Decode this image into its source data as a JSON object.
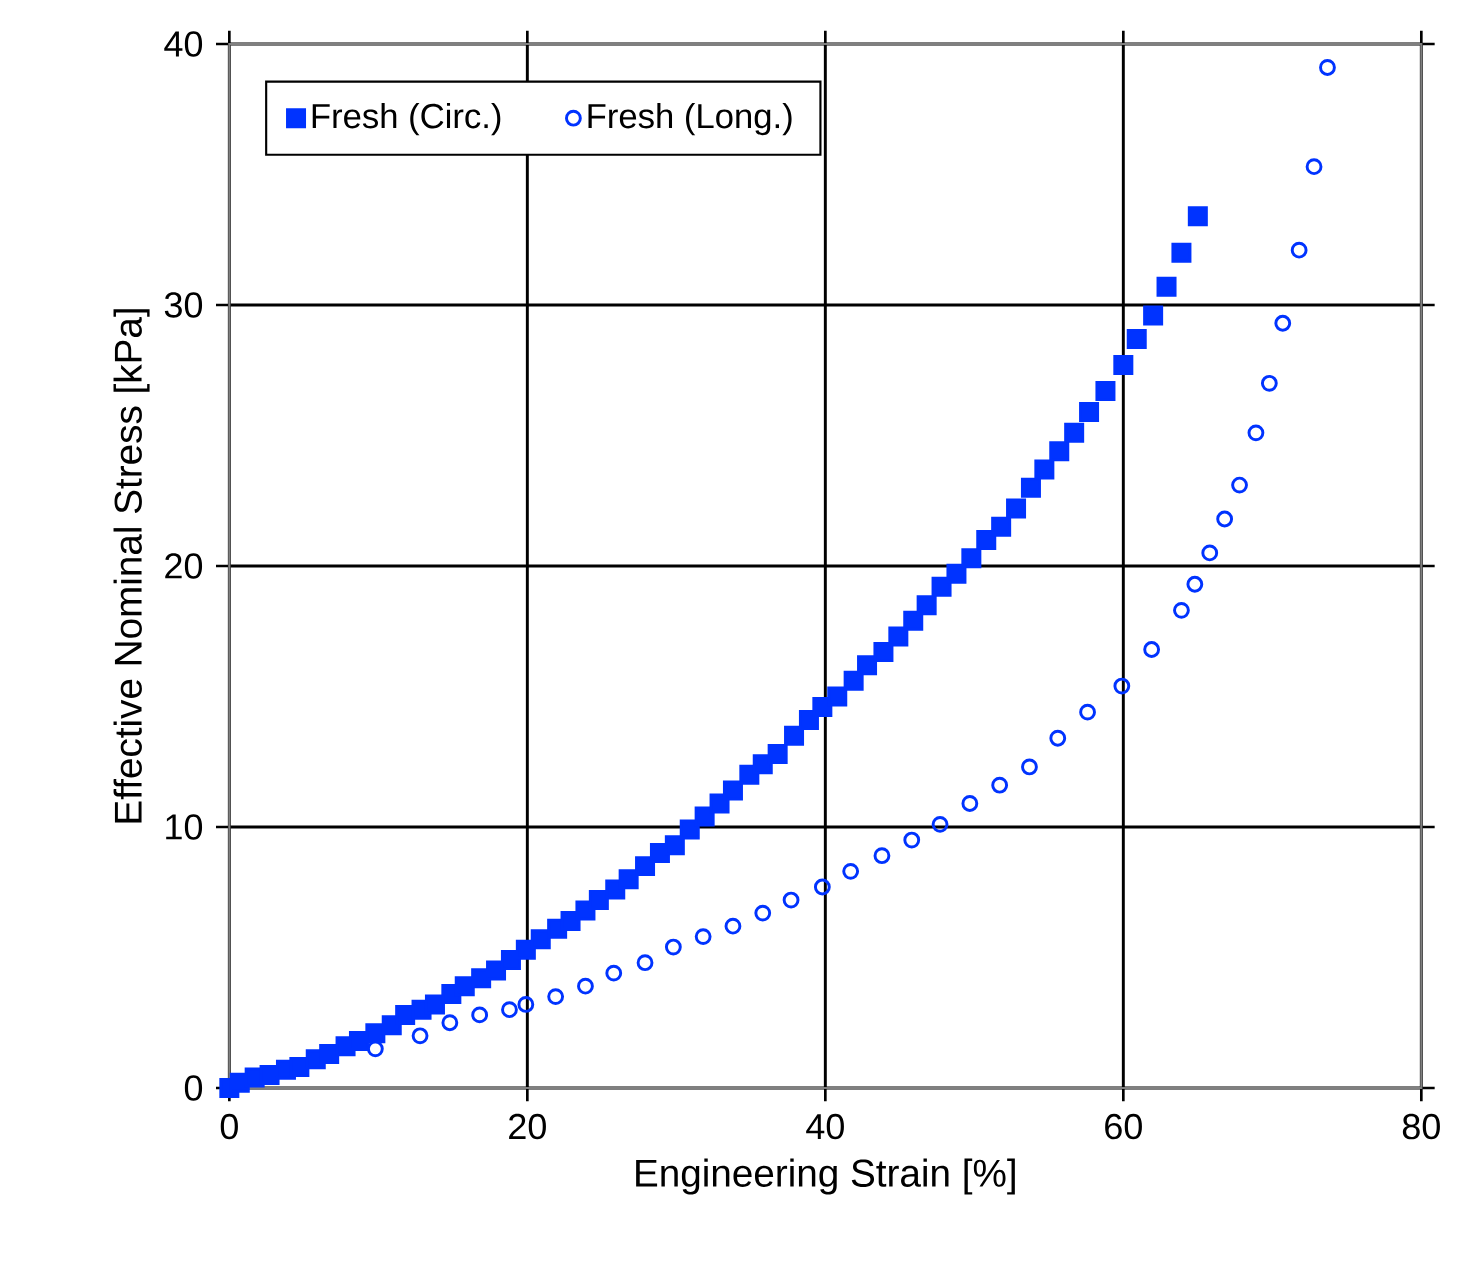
{
  "chart_data": {
    "type": "scatter",
    "xlabel": "Engineering Strain [%]",
    "ylabel": "Effective Nominal Stress [kPa]",
    "xlim": [
      0,
      80
    ],
    "ylim": [
      0,
      40
    ],
    "xticks": [
      0,
      20,
      40,
      60,
      80
    ],
    "yticks": [
      0,
      10,
      20,
      30,
      40
    ],
    "grid": true,
    "legend": "top left",
    "series": [
      {
        "name": "Fresh (Circ.)",
        "color": "#0033ff",
        "marker": "square",
        "x": [
          0,
          0.7,
          1.7,
          2.7,
          3.8,
          4.7,
          5.8,
          6.7,
          7.8,
          8.7,
          9.8,
          10.9,
          11.8,
          12.9,
          13.8,
          14.9,
          15.8,
          16.9,
          17.9,
          18.9,
          19.9,
          20.9,
          22.0,
          22.9,
          23.9,
          24.8,
          25.9,
          26.8,
          27.9,
          28.9,
          29.9,
          30.9,
          31.9,
          32.9,
          33.8,
          34.9,
          35.8,
          36.8,
          37.9,
          38.9,
          39.8,
          40.8,
          41.9,
          42.8,
          43.9,
          44.9,
          45.9,
          46.8,
          47.8,
          48.8,
          49.8,
          50.8,
          51.8,
          52.8,
          53.8,
          54.7,
          55.7,
          56.7,
          57.7,
          58.8,
          60.0,
          60.9,
          62.0,
          62.9,
          63.9,
          65.0
        ],
        "values": [
          0,
          0.2,
          0.4,
          0.5,
          0.7,
          0.8,
          1.1,
          1.3,
          1.6,
          1.8,
          2.1,
          2.4,
          2.8,
          3.0,
          3.2,
          3.6,
          3.9,
          4.2,
          4.5,
          4.9,
          5.3,
          5.7,
          6.1,
          6.4,
          6.8,
          7.2,
          7.6,
          8.0,
          8.5,
          9.0,
          9.3,
          9.9,
          10.4,
          10.9,
          11.4,
          12.0,
          12.4,
          12.8,
          13.5,
          14.1,
          14.6,
          15.0,
          15.6,
          16.2,
          16.7,
          17.3,
          17.9,
          18.5,
          19.2,
          19.7,
          20.3,
          21.0,
          21.5,
          22.2,
          23.0,
          23.7,
          24.4,
          25.1,
          25.9,
          26.7,
          27.7,
          28.7,
          29.6,
          30.7,
          32.0,
          33.4
        ]
      },
      {
        "name": "Fresh (Long.)",
        "color": "#0033ff",
        "marker": "circle",
        "x": [
          9.8,
          12.8,
          14.8,
          16.8,
          18.8,
          19.9,
          21.9,
          23.9,
          25.8,
          27.9,
          29.8,
          31.8,
          33.8,
          35.8,
          37.7,
          39.8,
          41.7,
          43.8,
          45.8,
          47.7,
          49.7,
          51.7,
          53.7,
          55.6,
          57.6,
          59.9,
          61.9,
          63.9,
          64.8,
          65.8,
          66.8,
          67.8,
          68.9,
          69.8,
          70.7,
          71.8,
          72.8,
          73.7
        ],
        "values": [
          1.5,
          2.0,
          2.5,
          2.8,
          3.0,
          3.2,
          3.5,
          3.9,
          4.4,
          4.8,
          5.4,
          5.8,
          6.2,
          6.7,
          7.2,
          7.7,
          8.3,
          8.9,
          9.5,
          10.1,
          10.9,
          11.6,
          12.3,
          13.4,
          14.4,
          15.4,
          16.8,
          18.3,
          19.3,
          20.5,
          21.8,
          23.1,
          25.1,
          27.0,
          29.3,
          32.1,
          35.3,
          39.1
        ]
      }
    ]
  }
}
